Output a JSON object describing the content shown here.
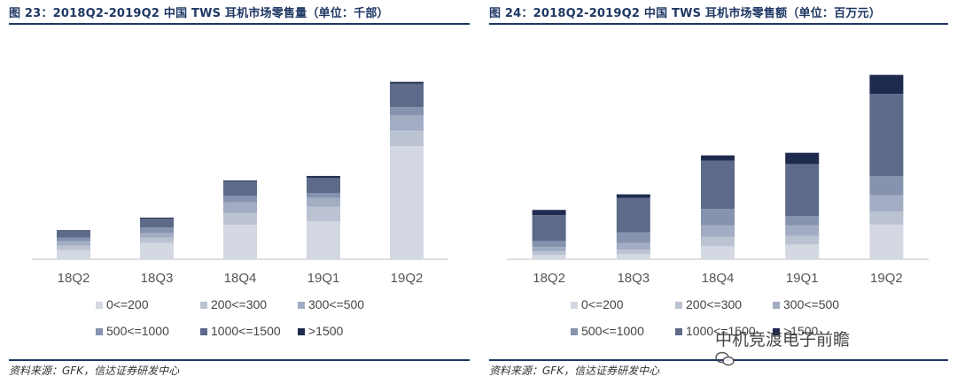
{
  "left": {
    "title": "图 23：2018Q2-2019Q2 中国 TWS 耳机市场零售量（单位：千部）",
    "source": "资料来源：GFK，信达证券研发中心"
  },
  "right": {
    "title": "图 24：2018Q2-2019Q2 中国 TWS 耳机市场零售额（单位：百万元）",
    "source": "资料来源：GFK，信达证券研发中心"
  },
  "watermark": "中机竞渡电子前瞻",
  "colors": {
    "0<=200": "#d3d8e2",
    "200<=300": "#bbc3d3",
    "300<=500": "#a2adc3",
    "500<=1000": "#8593ae",
    "1000<=1500": "#5d6a8a",
    ">1500": "#1f2b4e"
  },
  "chart_data": [
    {
      "type": "bar",
      "stacked": true,
      "categories": [
        "18Q2",
        "18Q3",
        "18Q4",
        "19Q1",
        "19Q2"
      ],
      "ylim": [
        0,
        220
      ],
      "legend_position": "bottom",
      "series": [
        {
          "name": "0<=200",
          "values": [
            10,
            18,
            38,
            42,
            125
          ]
        },
        {
          "name": "200<=300",
          "values": [
            5,
            6,
            13,
            16,
            17
          ]
        },
        {
          "name": "300<=500",
          "values": [
            5,
            5,
            12,
            10,
            17
          ]
        },
        {
          "name": "500<=1000",
          "values": [
            4,
            6,
            7,
            5,
            9
          ]
        },
        {
          "name": "1000<=1500",
          "values": [
            7,
            10,
            16,
            17,
            26
          ]
        },
        {
          "name": ">1500",
          "values": [
            1,
            1,
            1,
            2,
            2
          ]
        }
      ]
    },
    {
      "type": "bar",
      "stacked": true,
      "categories": [
        "18Q2",
        "18Q3",
        "18Q4",
        "19Q1",
        "19Q2"
      ],
      "ylim": [
        0,
        230
      ],
      "legend_position": "bottom",
      "series": [
        {
          "name": "0<=200",
          "values": [
            5,
            6,
            15,
            17,
            40
          ]
        },
        {
          "name": "200<=300",
          "values": [
            4,
            5,
            11,
            10,
            15
          ]
        },
        {
          "name": "300<=500",
          "values": [
            5,
            8,
            13,
            12,
            19
          ]
        },
        {
          "name": "500<=1000",
          "values": [
            7,
            12,
            19,
            11,
            22
          ]
        },
        {
          "name": "1000<=1500",
          "values": [
            30,
            40,
            56,
            60,
            95
          ]
        },
        {
          "name": ">1500",
          "values": [
            6,
            4,
            6,
            13,
            22
          ]
        }
      ]
    }
  ]
}
